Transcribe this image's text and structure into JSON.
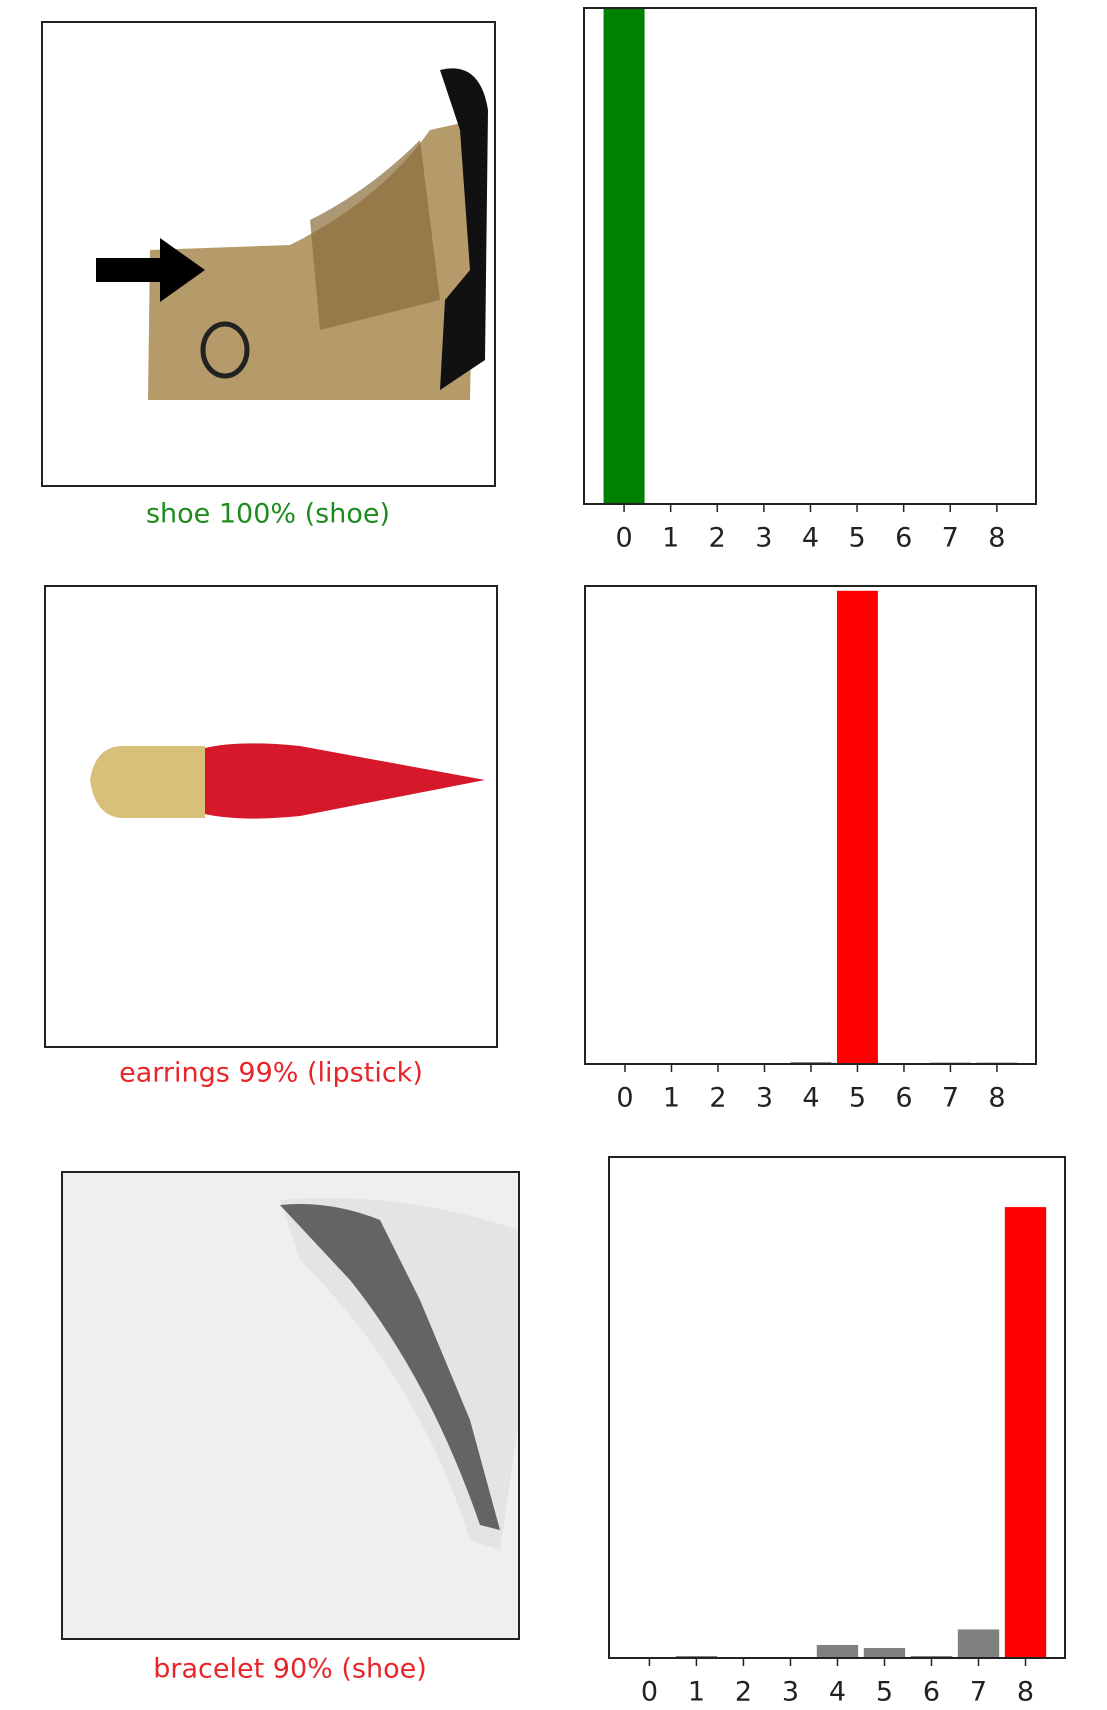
{
  "chart_data": [
    {
      "type": "image",
      "xlabel": "shoe 100% (shoe)",
      "xlabel_color": "#1e8c1e"
    },
    {
      "type": "bar",
      "categories": [
        "0",
        "1",
        "2",
        "3",
        "4",
        "5",
        "6",
        "7",
        "8"
      ],
      "values": [
        1.0,
        0,
        0,
        0,
        0,
        0,
        0,
        0,
        0
      ],
      "colors": [
        "#008000",
        "#808080",
        "#808080",
        "#808080",
        "#808080",
        "#808080",
        "#808080",
        "#808080",
        "#808080"
      ],
      "ylim": [
        0,
        1
      ]
    },
    {
      "type": "image",
      "xlabel": "earrings 99% (lipstick)",
      "xlabel_color": "#e8262a"
    },
    {
      "type": "bar",
      "categories": [
        "0",
        "1",
        "2",
        "3",
        "4",
        "5",
        "6",
        "7",
        "8"
      ],
      "values": [
        0,
        0,
        0,
        0,
        0.004,
        0.99,
        0,
        0.003,
        0.003
      ],
      "colors": [
        "#808080",
        "#808080",
        "#808080",
        "#808080",
        "#808080",
        "#ff0000",
        "#808080",
        "#808080",
        "#808080"
      ],
      "ylim": [
        0,
        1
      ]
    },
    {
      "type": "image",
      "xlabel": "bracelet 90% (shoe)",
      "xlabel_color": "#e8262a"
    },
    {
      "type": "bar",
      "categories": [
        "0",
        "1",
        "2",
        "3",
        "4",
        "5",
        "6",
        "7",
        "8"
      ],
      "values": [
        0,
        0.004,
        0,
        0,
        0.026,
        0.02,
        0.004,
        0.057,
        0.9
      ],
      "colors": [
        "#808080",
        "#808080",
        "#808080",
        "#808080",
        "#808080",
        "#808080",
        "#808080",
        "#808080",
        "#ff0000"
      ],
      "ylim": [
        0,
        1
      ]
    }
  ]
}
